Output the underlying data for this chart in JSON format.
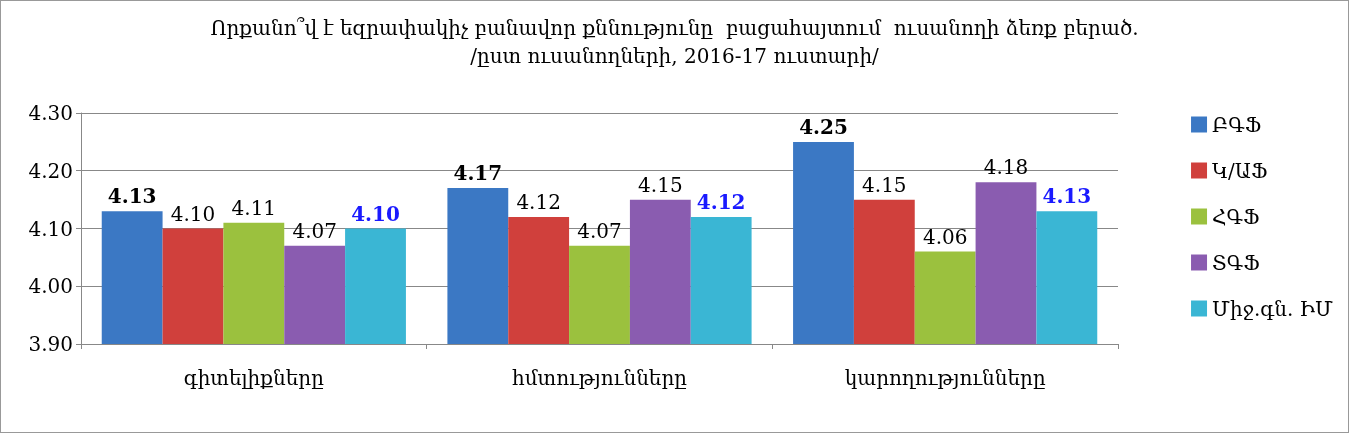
{
  "chart_data": {
    "type": "bar",
    "title": "Որքանո՞վ է եզրափակիչ բանավոր քննությունը  բացահայտում  ուսանողի ձեռք բերած.\n/ըստ ուսանողների, 2016-17 ուստարի/",
    "categories": [
      "գիտելիքները",
      "հմտությունները",
      "կարողությունները"
    ],
    "series": [
      {
        "name": "ԲԳՖ",
        "color": "#3b78c4",
        "values": [
          4.13,
          4.17,
          4.25
        ],
        "value_labels": [
          "4.13",
          "4.17",
          "4.25"
        ]
      },
      {
        "name": "Կ/ԱՖ",
        "color": "#d0403c",
        "values": [
          4.1,
          4.12,
          4.15
        ],
        "value_labels": [
          "4.10",
          "4.12",
          "4.15"
        ]
      },
      {
        "name": "ՀԳՖ",
        "color": "#9bc13e",
        "values": [
          4.11,
          4.07,
          4.06
        ],
        "value_labels": [
          "4.11",
          "4.07",
          "4.06"
        ]
      },
      {
        "name": "ՏԳՖ",
        "color": "#8a5cb0",
        "values": [
          4.07,
          4.15,
          4.18
        ],
        "value_labels": [
          "4.07",
          "4.15",
          "4.18"
        ]
      },
      {
        "name": "Միջ.գն. ԻՄ",
        "color": "#3ab6d4",
        "values": [
          4.1,
          4.12,
          4.13
        ],
        "value_labels": [
          "4.10",
          "4.12",
          "4.13"
        ]
      }
    ],
    "ylim": [
      3.9,
      4.3
    ],
    "yticks": [
      {
        "value": 3.9,
        "label": "3.90"
      },
      {
        "value": 4.0,
        "label": "4.00"
      },
      {
        "value": 4.1,
        "label": "4.10"
      },
      {
        "value": 4.2,
        "label": "4.20"
      },
      {
        "value": 4.3,
        "label": "4.30"
      }
    ],
    "grid": "y",
    "legend": "right"
  }
}
